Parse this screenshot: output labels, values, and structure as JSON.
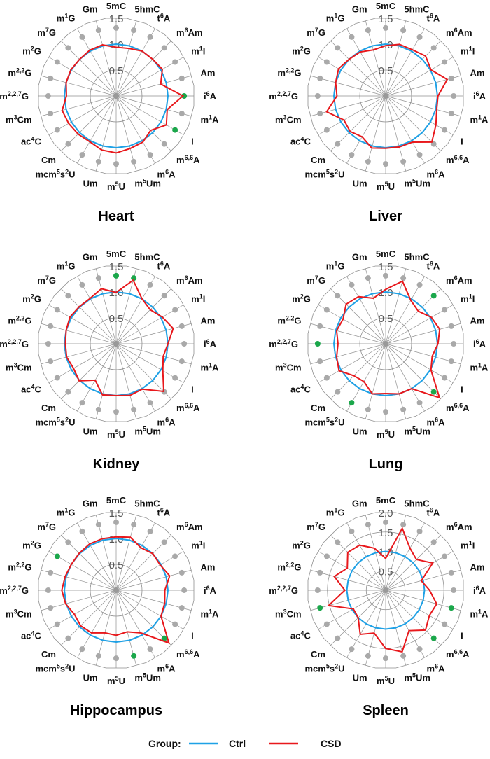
{
  "chart_data": [
    {
      "type": "radar",
      "title": "Heart",
      "rmax": 1.5,
      "ticks": [
        "0.5",
        "1.0",
        "1.5"
      ],
      "series": [
        {
          "name": "Ctrl",
          "values": [
            1,
            1,
            1,
            1,
            1,
            1,
            1,
            1,
            1,
            1,
            1,
            1,
            1,
            1,
            1,
            1,
            1,
            1,
            1,
            1,
            1,
            1,
            1,
            1
          ]
        },
        {
          "name": "CSD",
          "values": [
            0.94,
            0.95,
            1.0,
            1.0,
            1.03,
            0.89,
            1.29,
            1.02,
            1.12,
            0.94,
            1.03,
            1.05,
            1.1,
            1.08,
            1.02,
            1.04,
            1.06,
            1.08,
            0.96,
            1.0,
            1.01,
            1.0,
            1.02,
            1.02
          ]
        }
      ],
      "significant": [
        "i6A",
        "I"
      ]
    },
    {
      "type": "radar",
      "title": "Liver",
      "rmax": 1.5,
      "ticks": [
        "0.5",
        "1.0",
        "1.5"
      ],
      "series": [
        {
          "name": "Ctrl",
          "values": [
            1,
            1,
            1,
            1,
            1,
            1,
            1,
            1,
            1,
            1,
            1,
            1,
            1,
            1,
            1,
            1,
            1,
            1,
            1,
            1,
            1,
            1,
            1,
            1
          ]
        },
        {
          "name": "CSD",
          "values": [
            0.97,
            1.03,
            1.03,
            1.09,
            1.01,
            1.23,
            1.01,
            1.02,
            1.12,
            1.26,
            1.03,
            1.02,
            1.01,
            1.04,
            0.91,
            0.97,
            0.93,
            1.18,
            0.94,
            1.0,
            1.05,
            1.0,
            0.98,
            0.92
          ]
        }
      ],
      "significant": []
    },
    {
      "type": "radar",
      "title": "Kidney",
      "rmax": 1.5,
      "ticks": [
        "0.5",
        "1.0",
        "1.5"
      ],
      "series": [
        {
          "name": "Ctrl",
          "values": [
            1,
            1,
            1,
            1,
            1,
            1,
            1,
            1,
            1,
            1,
            1,
            1,
            1,
            1,
            1,
            1,
            1,
            1,
            1,
            1,
            1,
            1,
            1,
            1
          ]
        },
        {
          "name": "CSD",
          "values": [
            0.99,
            1.27,
            1.0,
            0.93,
            1.03,
            1.14,
            1.0,
            0.94,
            1.04,
            1.3,
            1.01,
            1.03,
            1.0,
            1.02,
            0.81,
            1.01,
            0.95,
            0.99,
            0.98,
            1.0,
            1.03,
            1.01,
            1.01,
            1.1
          ]
        }
      ],
      "significant": [
        "5mC",
        "5hmC"
      ]
    },
    {
      "type": "radar",
      "title": "Lung",
      "rmax": 1.5,
      "ticks": [
        "0.5",
        "1.0",
        "1.5"
      ],
      "series": [
        {
          "name": "Ctrl",
          "values": [
            1,
            1,
            1,
            1,
            1,
            1,
            1,
            1,
            1,
            1,
            1,
            1,
            1,
            1,
            1,
            1,
            1,
            1,
            1,
            1,
            1,
            1,
            1,
            1
          ]
        },
        {
          "name": "CSD",
          "values": [
            1.05,
            1.25,
            0.97,
            0.89,
            1.02,
            1.08,
            1.01,
            0.93,
            1.01,
            1.47,
            1.0,
            1.0,
            0.96,
            1.0,
            0.84,
            0.87,
            1.04,
            0.98,
            0.92,
            0.98,
            0.95,
            1.08,
            1.05,
            0.91
          ]
        }
      ],
      "significant": [
        "m6Am",
        "m6,6A",
        "mcm5s2U",
        "m2,2,7G"
      ]
    },
    {
      "type": "radar",
      "title": "Hippocampus",
      "rmax": 1.5,
      "ticks": [
        "0.5",
        "1.0",
        "1.5"
      ],
      "series": [
        {
          "name": "Ctrl",
          "values": [
            1,
            1,
            1,
            1,
            1,
            1,
            1,
            1,
            1,
            1,
            1,
            1,
            1,
            1,
            1,
            1,
            1,
            1,
            1,
            1,
            1,
            1,
            1,
            1
          ]
        },
        {
          "name": "CSD",
          "values": [
            1.03,
            1.06,
            0.95,
            1.0,
            0.98,
            1.07,
            0.94,
            0.97,
            1.0,
            1.44,
            0.95,
            0.83,
            0.87,
            0.85,
            0.95,
            0.97,
            0.93,
            1.01,
            1.05,
            1.02,
            1.0,
            1.01,
            1.03,
            1.03
          ]
        }
      ],
      "significant": [
        "m6,6A",
        "m5Um",
        "m2G"
      ]
    },
    {
      "type": "radar",
      "title": "Spleen",
      "rmax": 2.0,
      "ticks": [
        "0.5",
        "1.0",
        "1.5",
        "2.0"
      ],
      "series": [
        {
          "name": "Ctrl",
          "values": [
            1,
            1,
            1,
            1,
            1,
            1,
            1,
            1,
            1,
            1,
            1,
            1,
            1,
            1,
            1,
            1,
            1,
            1,
            1,
            1,
            1,
            1,
            1,
            1
          ]
        },
        {
          "name": "CSD",
          "values": [
            0.82,
            1.65,
            1.25,
            1.12,
            1.4,
            0.95,
            1.13,
            1.36,
            1.3,
            1.45,
            1.2,
            1.64,
            1.5,
            1.14,
            1.31,
            1.0,
            0.96,
            1.52,
            1.05,
            1.37,
            1.14,
            1.38,
            1.34,
            1.12
          ]
        }
      ],
      "significant": [
        "m1A",
        "m6,6A",
        "m3Cm"
      ]
    }
  ],
  "axes": [
    "5mC",
    "5hmC",
    "t{6}A",
    "m{6}Am",
    "m{1}I",
    "Am",
    "i{6}A",
    "m{1}A",
    "I",
    "m{6,6}A",
    "m{6}A",
    "m{5}Um",
    "m{5}U",
    "Um",
    "mcm{5}s{2}U",
    "Cm",
    "ac{4}C",
    "m{3}Cm",
    "m{2,2,7}G",
    "m{2,2}G",
    "m{2}G",
    "m{7}G",
    "m{1}G",
    "Gm"
  ],
  "legend": {
    "title": "Group:",
    "items": [
      {
        "label": "Ctrl",
        "color": "#1ea1e6"
      },
      {
        "label": "CSD",
        "color": "#e8181c"
      }
    ]
  },
  "colors": {
    "ctrl": "#1ea1e6",
    "csd": "#e8181c",
    "significant_dot": "#1ba74b",
    "dot": "#a9a9a9",
    "grid": "#8f8f8f"
  }
}
